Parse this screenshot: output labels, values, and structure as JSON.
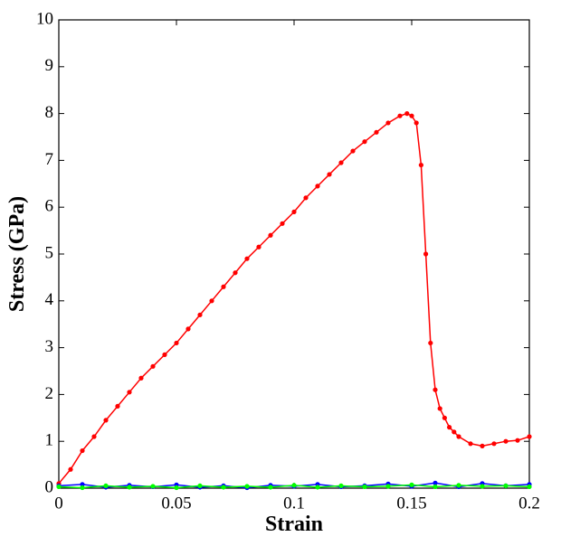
{
  "chart_data": {
    "type": "line",
    "xlabel": "Strain",
    "ylabel": "Stress (GPa)",
    "xlim": [
      0,
      0.2
    ],
    "ylim": [
      0,
      10
    ],
    "xticks": [
      0,
      0.05,
      0.1,
      0.15,
      0.2
    ],
    "yticks": [
      0,
      1,
      2,
      3,
      4,
      5,
      6,
      7,
      8,
      9,
      10
    ],
    "series": [
      {
        "color": "#ff0000",
        "x": [
          0,
          0.005,
          0.01,
          0.015,
          0.02,
          0.025,
          0.03,
          0.035,
          0.04,
          0.045,
          0.05,
          0.055,
          0.06,
          0.065,
          0.07,
          0.075,
          0.08,
          0.085,
          0.09,
          0.095,
          0.1,
          0.105,
          0.11,
          0.115,
          0.12,
          0.125,
          0.13,
          0.135,
          0.14,
          0.145,
          0.148,
          0.15,
          0.152,
          0.154,
          0.156,
          0.158,
          0.16,
          0.162,
          0.164,
          0.166,
          0.168,
          0.17,
          0.175,
          0.18,
          0.185,
          0.19,
          0.195,
          0.2
        ],
        "values": [
          0.1,
          0.4,
          0.8,
          1.1,
          1.45,
          1.75,
          2.05,
          2.35,
          2.6,
          2.85,
          3.1,
          3.4,
          3.7,
          4.0,
          4.3,
          4.6,
          4.9,
          5.15,
          5.4,
          5.65,
          5.9,
          6.2,
          6.45,
          6.7,
          6.95,
          7.2,
          7.4,
          7.6,
          7.8,
          7.95,
          8.0,
          7.95,
          7.8,
          6.9,
          5.0,
          3.1,
          2.1,
          1.7,
          1.5,
          1.3,
          1.2,
          1.1,
          0.95,
          0.9,
          0.95,
          1.0,
          1.02,
          1.1
        ]
      },
      {
        "color": "#0000ff",
        "x": [
          0,
          0.01,
          0.02,
          0.03,
          0.04,
          0.05,
          0.06,
          0.07,
          0.08,
          0.09,
          0.1,
          0.11,
          0.12,
          0.13,
          0.14,
          0.15,
          0.16,
          0.17,
          0.18,
          0.19,
          0.2
        ],
        "values": [
          0.05,
          0.08,
          0.02,
          0.06,
          0.03,
          0.07,
          0.02,
          0.05,
          0.01,
          0.06,
          0.04,
          0.08,
          0.03,
          0.05,
          0.09,
          0.04,
          0.11,
          0.03,
          0.1,
          0.05,
          0.08
        ]
      },
      {
        "color": "#00ff00",
        "x": [
          0,
          0.01,
          0.02,
          0.03,
          0.04,
          0.05,
          0.06,
          0.07,
          0.08,
          0.09,
          0.1,
          0.11,
          0.12,
          0.13,
          0.14,
          0.15,
          0.16,
          0.17,
          0.18,
          0.19,
          0.2
        ],
        "values": [
          0.03,
          0.01,
          0.05,
          0.02,
          0.04,
          0.01,
          0.05,
          0.02,
          0.04,
          0.02,
          0.06,
          0.02,
          0.05,
          0.03,
          0.04,
          0.07,
          0.03,
          0.06,
          0.04,
          0.05,
          0.03
        ]
      }
    ]
  }
}
